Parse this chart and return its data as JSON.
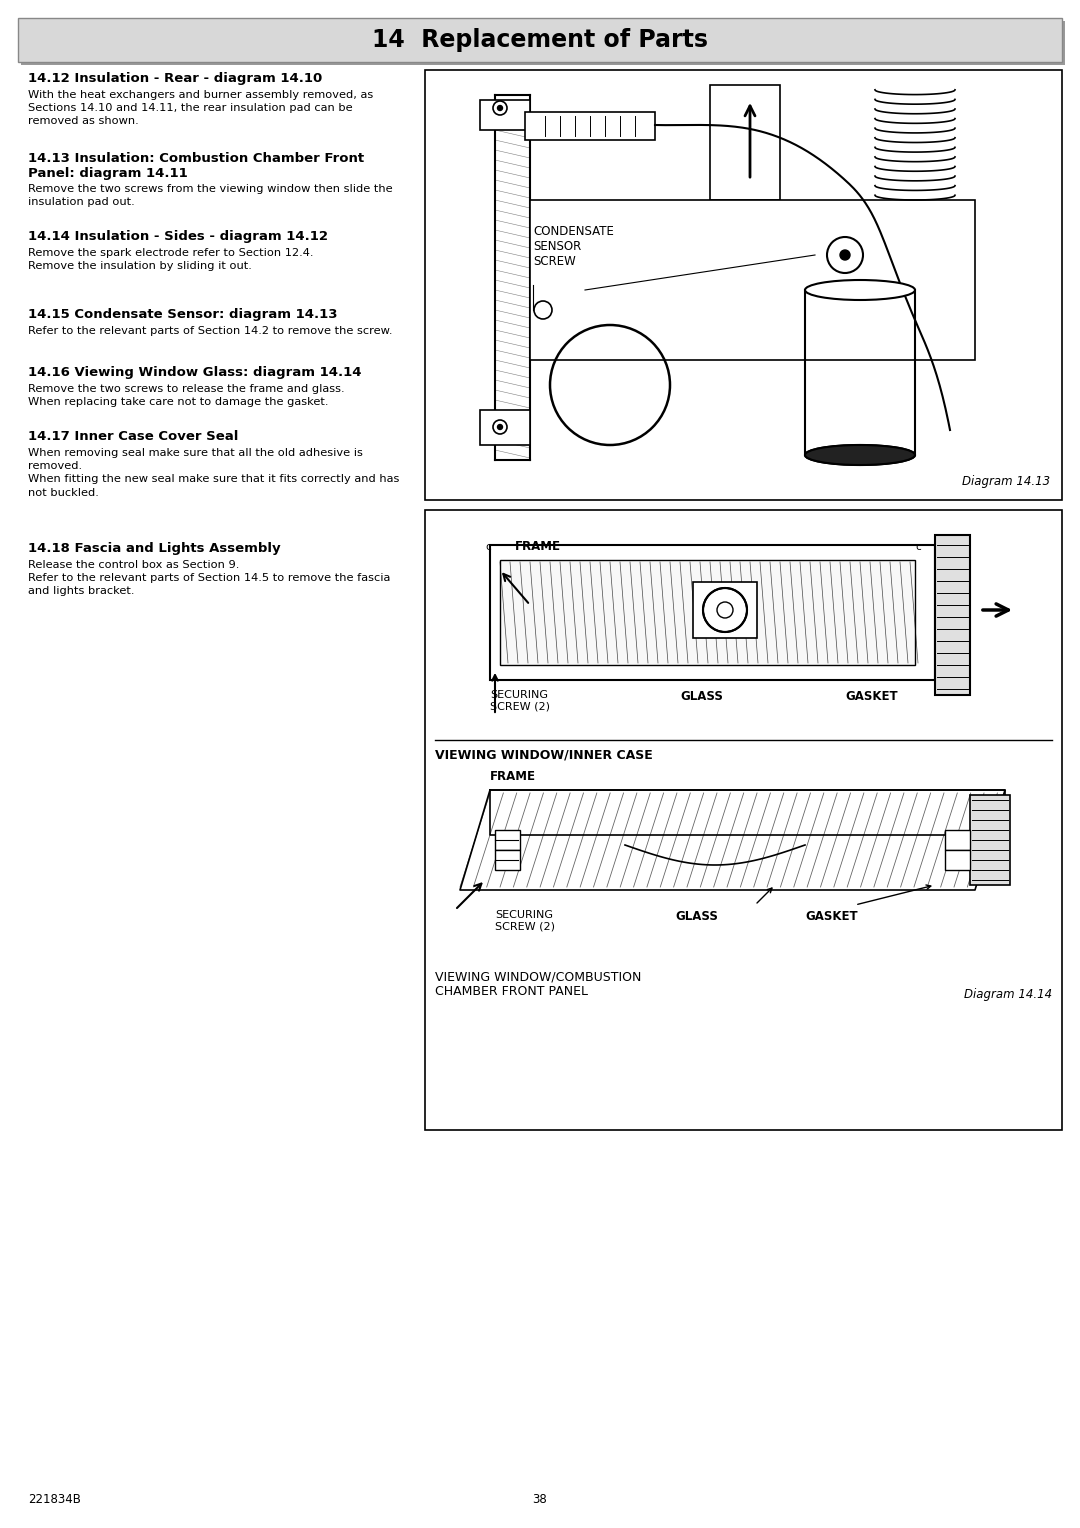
{
  "page_bg": "#ffffff",
  "header_bg": "#d4d4d4",
  "header_text": "14  Replacement of Parts",
  "border_color": "#666666",
  "text_color": "#000000",
  "sections": [
    {
      "heading": "14.12 Insulation - Rear - diagram 14.10",
      "body": "With the heat exchangers and burner assembly removed, as\nSections 14.10 and 14.11, the rear insulation pad can be\nremoved as shown."
    },
    {
      "heading": "14.13 Insulation: Combustion Chamber Front\nPanel: diagram 14.11",
      "body": "Remove the two screws from the viewing window then slide the\ninsulation pad out."
    },
    {
      "heading": "14.14 Insulation - Sides - diagram 14.12",
      "body": "Remove the spark electrode refer to Section 12.4.\nRemove the insulation by sliding it out."
    },
    {
      "heading": "14.15 Condensate Sensor: diagram 14.13",
      "body": "Refer to the relevant parts of Section 14.2 to remove the screw."
    },
    {
      "heading": "14.16 Viewing Window Glass: diagram 14.14",
      "body": "Remove the two screws to release the frame and glass.\nWhen replacing take care not to damage the gasket."
    },
    {
      "heading": "14.17 Inner Case Cover Seal",
      "body": "When removing seal make sure that all the old adhesive is\nremoved.\nWhen fitting the new seal make sure that it fits correctly and has\nnot buckled."
    },
    {
      "heading": "14.18 Fascia and Lights Assembly",
      "body": "Release the control box as Section 9.\nRefer to the relevant parts of Section 14.5 to remove the fascia\nand lights bracket."
    }
  ],
  "footer_left": "221834B",
  "footer_center": "38",
  "diagram1_label": "Diagram 14.13",
  "diagram2_top_label": "VIEWING WINDOW/INNER CASE",
  "diagram2_bottom_label": "VIEWING WINDOW/COMBUSTION\nCHAMBER FRONT PANEL",
  "diagram2_caption": "Diagram 14.14"
}
